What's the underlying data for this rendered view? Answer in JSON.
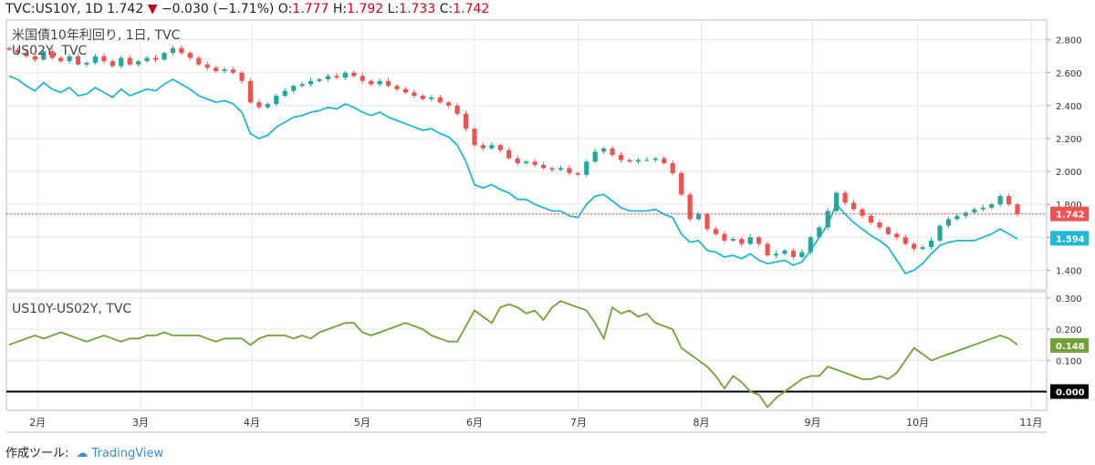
{
  "header": {
    "symbol": "TVC:US10Y, 1D",
    "last": "1.742",
    "arrow": "▼",
    "change": "−0.030 (−1.71%)",
    "open_label": "O:",
    "open": "1.777",
    "high_label": "H:",
    "high": "1.792",
    "low_label": "L:",
    "low": "1.733",
    "close_label": "C:",
    "close": "1.742"
  },
  "footer": {
    "made_with": "作成ツール:",
    "brand": "TradingView"
  },
  "colors": {
    "up": "#26a69a",
    "down": "#ef5350",
    "us02y": "#1fb8d2",
    "spread": "#6fa33a",
    "grid": "#e6e6e6"
  },
  "chart_data": [
    {
      "type": "candlestick",
      "title": "米国債10年利回り, 1日, TVC",
      "secondary_series_title": "US02Y, TVC",
      "ylim": [
        1.28,
        2.92
      ],
      "yticks": [
        "2.800",
        "2.600",
        "2.400",
        "2.200",
        "2.000",
        "1.800",
        "1.600",
        "1.400"
      ],
      "last_label_main": "1.742",
      "last_label_secondary": "1.594",
      "x_months": [
        "2月",
        "3月",
        "4月",
        "5月",
        "6月",
        "7月",
        "8月",
        "9月",
        "10月",
        "11月"
      ],
      "us10y_close": [
        2.74,
        2.72,
        2.7,
        2.68,
        2.73,
        2.69,
        2.67,
        2.7,
        2.65,
        2.66,
        2.7,
        2.67,
        2.64,
        2.69,
        2.65,
        2.67,
        2.69,
        2.68,
        2.72,
        2.75,
        2.72,
        2.69,
        2.65,
        2.63,
        2.61,
        2.62,
        2.6,
        2.55,
        2.42,
        2.39,
        2.41,
        2.46,
        2.49,
        2.52,
        2.53,
        2.55,
        2.56,
        2.58,
        2.57,
        2.6,
        2.58,
        2.55,
        2.53,
        2.55,
        2.52,
        2.5,
        2.48,
        2.46,
        2.44,
        2.45,
        2.42,
        2.4,
        2.35,
        2.26,
        2.16,
        2.14,
        2.16,
        2.13,
        2.08,
        2.05,
        2.06,
        2.04,
        2.02,
        2.01,
        2.02,
        1.99,
        1.98,
        2.06,
        2.12,
        2.14,
        2.1,
        2.07,
        2.06,
        2.07,
        2.07,
        2.08,
        2.05,
        1.99,
        1.86,
        1.71,
        1.74,
        1.65,
        1.62,
        1.58,
        1.59,
        1.56,
        1.6,
        1.56,
        1.49,
        1.5,
        1.52,
        1.48,
        1.51,
        1.6,
        1.66,
        1.76,
        1.87,
        1.81,
        1.77,
        1.73,
        1.69,
        1.66,
        1.62,
        1.6,
        1.56,
        1.53,
        1.54,
        1.58,
        1.67,
        1.71,
        1.73,
        1.75,
        1.77,
        1.78,
        1.8,
        1.85,
        1.8,
        1.74
      ],
      "us02y": [
        2.58,
        2.56,
        2.52,
        2.49,
        2.54,
        2.5,
        2.48,
        2.51,
        2.46,
        2.47,
        2.51,
        2.48,
        2.45,
        2.5,
        2.46,
        2.48,
        2.5,
        2.49,
        2.53,
        2.56,
        2.53,
        2.5,
        2.46,
        2.44,
        2.42,
        2.43,
        2.41,
        2.36,
        2.23,
        2.2,
        2.22,
        2.27,
        2.3,
        2.33,
        2.34,
        2.36,
        2.37,
        2.39,
        2.38,
        2.41,
        2.39,
        2.36,
        2.34,
        2.36,
        2.33,
        2.31,
        2.29,
        2.27,
        2.25,
        2.26,
        2.23,
        2.21,
        2.16,
        2.06,
        1.92,
        1.9,
        1.92,
        1.89,
        1.87,
        1.83,
        1.83,
        1.8,
        1.78,
        1.76,
        1.76,
        1.73,
        1.72,
        1.8,
        1.85,
        1.86,
        1.82,
        1.78,
        1.76,
        1.76,
        1.76,
        1.77,
        1.74,
        1.72,
        1.62,
        1.57,
        1.58,
        1.52,
        1.51,
        1.48,
        1.49,
        1.47,
        1.5,
        1.46,
        1.44,
        1.45,
        1.46,
        1.43,
        1.45,
        1.52,
        1.6,
        1.68,
        1.8,
        1.74,
        1.69,
        1.65,
        1.61,
        1.58,
        1.54,
        1.46,
        1.38,
        1.4,
        1.44,
        1.5,
        1.55,
        1.57,
        1.58,
        1.58,
        1.58,
        1.6,
        1.62,
        1.65,
        1.62,
        1.59
      ]
    },
    {
      "type": "line",
      "title": "US10Y-US02Y, TVC",
      "ylim": [
        -0.06,
        0.32
      ],
      "yticks": [
        "0.300",
        "0.200",
        "0.100"
      ],
      "zero_label": "0.000",
      "last_label": "0.148",
      "values": [
        0.15,
        0.16,
        0.17,
        0.18,
        0.17,
        0.18,
        0.19,
        0.18,
        0.17,
        0.16,
        0.17,
        0.18,
        0.17,
        0.16,
        0.17,
        0.17,
        0.18,
        0.18,
        0.19,
        0.18,
        0.18,
        0.18,
        0.18,
        0.17,
        0.16,
        0.17,
        0.17,
        0.17,
        0.15,
        0.17,
        0.18,
        0.18,
        0.18,
        0.17,
        0.18,
        0.17,
        0.19,
        0.2,
        0.21,
        0.22,
        0.22,
        0.19,
        0.18,
        0.19,
        0.2,
        0.21,
        0.22,
        0.21,
        0.2,
        0.18,
        0.17,
        0.16,
        0.16,
        0.21,
        0.26,
        0.24,
        0.22,
        0.27,
        0.28,
        0.27,
        0.25,
        0.26,
        0.23,
        0.27,
        0.29,
        0.28,
        0.27,
        0.26,
        0.22,
        0.17,
        0.27,
        0.25,
        0.26,
        0.24,
        0.25,
        0.22,
        0.21,
        0.2,
        0.14,
        0.12,
        0.1,
        0.08,
        0.05,
        0.01,
        0.05,
        0.03,
        0.0,
        -0.01,
        -0.05,
        -0.02,
        0.0,
        0.02,
        0.04,
        0.05,
        0.05,
        0.08,
        0.07,
        0.06,
        0.05,
        0.04,
        0.04,
        0.05,
        0.04,
        0.06,
        0.1,
        0.14,
        0.12,
        0.1,
        0.11,
        0.12,
        0.13,
        0.14,
        0.15,
        0.16,
        0.17,
        0.18,
        0.17,
        0.15
      ]
    }
  ]
}
